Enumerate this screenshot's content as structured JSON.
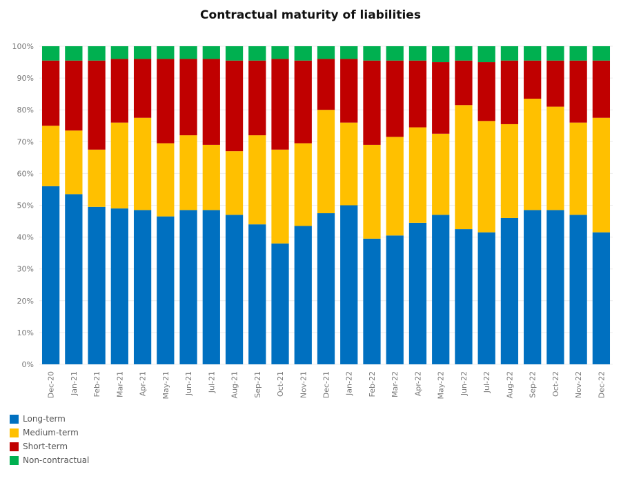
{
  "chart_data": {
    "type": "bar",
    "stacked": true,
    "title": "Contractual maturity of liabilities",
    "categories": [
      "Dec-20",
      "Jan-21",
      "Feb-21",
      "Mar-21",
      "Apr-21",
      "May-21",
      "Jun-21",
      "Jul-21",
      "Aug-21",
      "Sep-21",
      "Oct-21",
      "Nov-21",
      "Dec-21",
      "Jan-22",
      "Feb-22",
      "Mar-22",
      "Apr-22",
      "May-22",
      "Jun-22",
      "Jul-22",
      "Aug-22",
      "Sep-22",
      "Oct-22",
      "Nov-22",
      "Dec-22"
    ],
    "series": [
      {
        "name": "Long-term",
        "color": "#0070C0",
        "values": [
          56,
          53.5,
          49.5,
          49,
          48.5,
          46.5,
          48.5,
          48.5,
          47,
          44,
          38,
          43.5,
          47.5,
          50,
          39.5,
          40.5,
          44.5,
          47,
          42.5,
          41.5,
          46,
          48.5,
          48.5,
          47,
          41.5
        ]
      },
      {
        "name": "Medium-term",
        "color": "#FFC000",
        "values": [
          19,
          20,
          18,
          27,
          29,
          23,
          23.5,
          20.5,
          20,
          28,
          29.5,
          26,
          32.5,
          26,
          29.5,
          31,
          30,
          25.5,
          39,
          35,
          29.5,
          35,
          32.5,
          29,
          36
        ]
      },
      {
        "name": "Short-term",
        "color": "#C00000",
        "values": [
          20.5,
          22,
          28,
          20,
          18.5,
          26.5,
          24,
          27,
          28.5,
          23.5,
          28.5,
          26,
          16,
          20,
          26.5,
          24,
          21,
          22.5,
          14,
          18.5,
          20,
          12,
          14.5,
          19.5,
          18
        ]
      },
      {
        "name": "Non-contractual",
        "color": "#00B050",
        "values": [
          4.5,
          4.5,
          4.5,
          4,
          4,
          4,
          4,
          4,
          4.5,
          4.5,
          4,
          4.5,
          4,
          4,
          4.5,
          4.5,
          4.5,
          5,
          4.5,
          5,
          4.5,
          4.5,
          4.5,
          4.5,
          4.5
        ]
      }
    ],
    "y_ticks": [
      "0%",
      "10%",
      "20%",
      "30%",
      "40%",
      "50%",
      "60%",
      "70%",
      "80%",
      "90%",
      "100%"
    ],
    "ylim": [
      0,
      100
    ],
    "grid": true,
    "legend_position": "bottom-left"
  }
}
